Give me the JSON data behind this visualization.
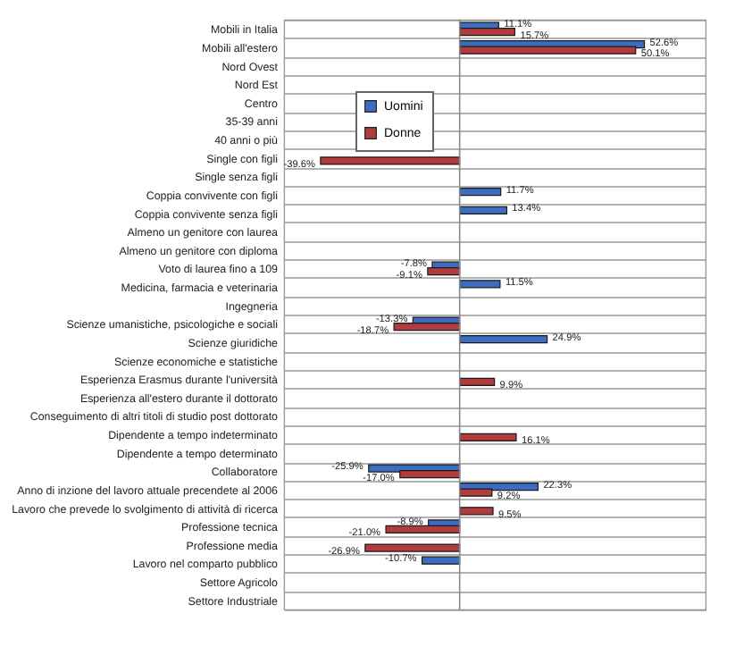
{
  "chart_data": {
    "type": "bar",
    "orientation": "horizontal",
    "categories": [
      "Mobili in Italia",
      "Mobili all'estero",
      "Nord Ovest",
      "Nord Est",
      "Centro",
      "35-39 anni",
      "40 anni o più",
      "Single con figli",
      "Single senza figli",
      "Coppia convivente con figli",
      "Coppia convivente senza figli",
      "Almeno un genitore con laurea",
      "Almeno un genitore con diploma",
      "Voto di laurea fino a 109",
      "Medicina, farmacia e veterinaria",
      "Ingegneria",
      "Scienze umanistiche, psicologiche e sociali",
      "Scienze giuridiche ",
      "Scienze economiche e statistiche ",
      "Esperienza Erasmus durante l'università",
      "Esperienza all'estero durante il dottorato",
      "Conseguimento di altri titoli di studio post dottorato",
      "Dipendente a tempo indeterminato",
      "Dipendente a tempo determinato",
      "Collaboratore",
      "Anno di inzione del lavoro attuale precendete al 2006",
      "Lavoro che prevede lo svolgimento di attività di ricerca",
      "Professione tecnica",
      "Professione media",
      "Lavoro nel comparto pubblico",
      "Settore Agricolo",
      "Settore Industriale"
    ],
    "series": [
      {
        "name": "Uomini",
        "color": "#3d6cc0",
        "values": [
          11.1,
          52.6,
          null,
          null,
          null,
          null,
          null,
          null,
          null,
          11.7,
          13.4,
          null,
          null,
          -7.8,
          11.5,
          null,
          -13.3,
          24.9,
          null,
          null,
          null,
          null,
          null,
          null,
          -25.9,
          22.3,
          null,
          -8.9,
          null,
          -10.7,
          null,
          null
        ],
        "value_labels": [
          "11.1%",
          "52.6%",
          null,
          null,
          null,
          null,
          null,
          null,
          null,
          "11.7%",
          "13.4%",
          null,
          null,
          "-7.8%",
          "11.5%",
          null,
          "-13.3%",
          "24.9%",
          null,
          null,
          null,
          null,
          null,
          null,
          "-25.9%",
          "22.3%",
          null,
          "-8.9%",
          null,
          "-10.7%",
          null,
          null
        ]
      },
      {
        "name": "Donne",
        "color": "#b23b3b",
        "values": [
          15.7,
          50.1,
          null,
          null,
          null,
          null,
          null,
          -39.6,
          null,
          null,
          null,
          null,
          null,
          -9.1,
          null,
          null,
          -18.7,
          null,
          null,
          9.9,
          null,
          null,
          16.1,
          null,
          -17.0,
          9.2,
          9.5,
          -21.0,
          -26.9,
          null,
          null,
          null
        ],
        "value_labels": [
          "15.7%",
          "50.1%",
          null,
          null,
          null,
          null,
          null,
          "-39.6%",
          null,
          null,
          null,
          null,
          null,
          "-9.1%",
          null,
          null,
          "-18.7%",
          null,
          null,
          "9.9%",
          null,
          null,
          "16.1%",
          null,
          "-17.0%",
          "9.2%",
          "9.5%",
          "-21.0%",
          "-26.9%",
          null,
          null,
          null
        ]
      }
    ],
    "xlim": [
      -50,
      70
    ],
    "grid": "y",
    "legend": "top left",
    "tick_labels": "y"
  }
}
